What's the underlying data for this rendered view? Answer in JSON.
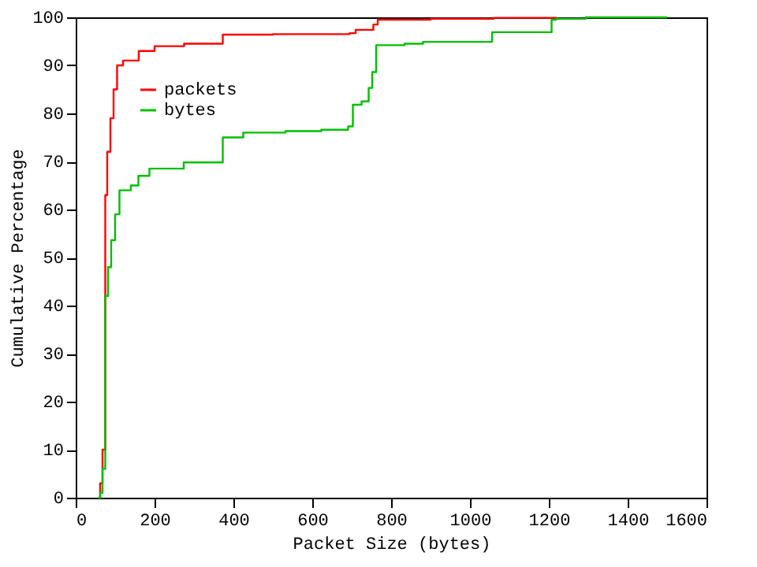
{
  "chart_data": {
    "type": "step",
    "xlabel": "Packet Size (bytes)",
    "ylabel": "Cumulative Percentage",
    "xlim": [
      0,
      1600
    ],
    "ylim": [
      0,
      100
    ],
    "xticks": [
      0,
      200,
      400,
      600,
      800,
      1000,
      1200,
      1400,
      1600
    ],
    "yticks": [
      0,
      10,
      20,
      30,
      40,
      50,
      60,
      70,
      80,
      90,
      100
    ],
    "grid": false,
    "legend": "top left",
    "marker": "none",
    "line_style": "solid",
    "series": [
      {
        "name": "packets",
        "color": "#ff0000",
        "x": [
          58,
          62,
          68,
          75,
          80,
          88,
          96,
          105,
          120,
          160,
          200,
          275,
          373,
          500,
          695,
          710,
          755,
          766,
          900,
          1060,
          1220
        ],
        "values": [
          0,
          3,
          10,
          63,
          72,
          79,
          85,
          90,
          91,
          93,
          94,
          94.5,
          96.4,
          96.5,
          96.7,
          97.4,
          98.5,
          99.5,
          99.7,
          99.9,
          100
        ]
      },
      {
        "name": "bytes",
        "color": "#00c000",
        "x": [
          58,
          62,
          68,
          75,
          82,
          90,
          100,
          111,
          140,
          159,
          187,
          274,
          373,
          425,
          532,
          623,
          691,
          703,
          725,
          743,
          752,
          762,
          834,
          881,
          1056,
          1207,
          1219,
          1294,
          1500
        ],
        "values": [
          0,
          1,
          6,
          42,
          48,
          53.6,
          59,
          64,
          65,
          67,
          68.5,
          69.8,
          75,
          76,
          76.3,
          76.6,
          77.3,
          81.8,
          82.5,
          85.3,
          88.6,
          94.2,
          94.5,
          94.9,
          96.9,
          99.5,
          99.7,
          100,
          100
        ]
      }
    ]
  }
}
